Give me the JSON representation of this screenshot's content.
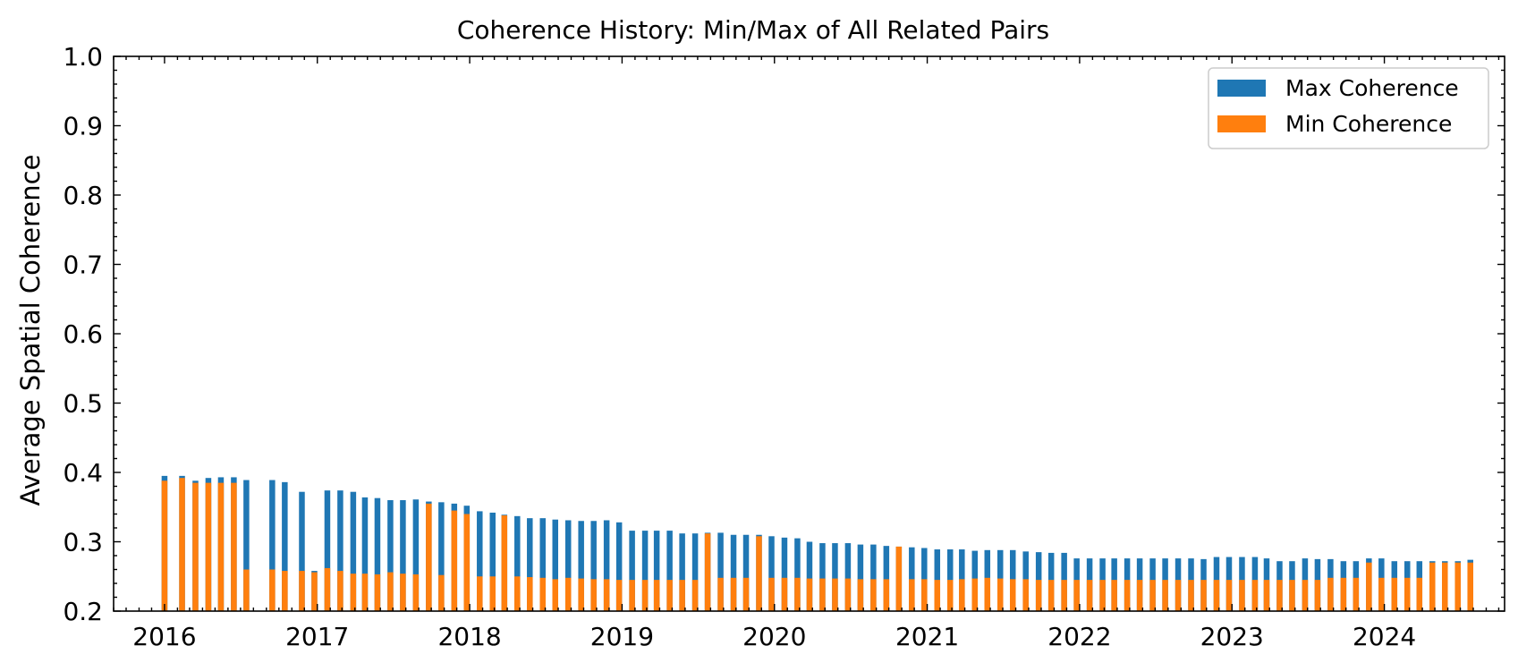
{
  "chart_data": {
    "type": "bar",
    "stacking": "overlaid",
    "title": "Coherence History: Min/Max of All Related Pairs",
    "xlabel": "",
    "ylabel": "Average Spatial Coherence",
    "ylim": [
      0.2,
      1.0
    ],
    "y_ticks": [
      "0.2",
      "0.3",
      "0.4",
      "0.5",
      "0.6",
      "0.7",
      "0.8",
      "0.9",
      "1.0"
    ],
    "xlim": [
      "2015-09-01",
      "2024-10-15"
    ],
    "x_ticks": [
      "2016-01-01",
      "2017-01-01",
      "2018-01-01",
      "2019-01-01",
      "2020-01-01",
      "2021-01-01",
      "2022-01-01",
      "2023-01-01",
      "2024-01-01"
    ],
    "x_tick_labels": [
      "2016",
      "2017",
      "2018",
      "2019",
      "2020",
      "2021",
      "2022",
      "2023",
      "2024"
    ],
    "grid": false,
    "legend": {
      "position": "top-right"
    },
    "colors": {
      "max": "#1f77b4",
      "min": "#ff7f0e"
    },
    "series": [
      {
        "name": "Max Coherence",
        "key": "max"
      },
      {
        "name": "Min Coherence",
        "key": "min"
      }
    ],
    "x": [
      "2016-01-01",
      "2016-02-12",
      "2016-03-15",
      "2016-04-15",
      "2016-05-15",
      "2016-06-15",
      "2016-07-15",
      "2016-09-15",
      "2016-10-15",
      "2016-11-25",
      "2016-12-25",
      "2017-01-25",
      "2017-02-25",
      "2017-03-28",
      "2017-04-25",
      "2017-05-25",
      "2017-06-25",
      "2017-07-25",
      "2017-08-25",
      "2017-09-25",
      "2017-10-25",
      "2017-11-25",
      "2017-12-25",
      "2018-01-25",
      "2018-02-25",
      "2018-03-25",
      "2018-04-25",
      "2018-05-25",
      "2018-06-25",
      "2018-07-25",
      "2018-08-25",
      "2018-09-25",
      "2018-10-25",
      "2018-11-25",
      "2018-12-25",
      "2019-01-25",
      "2019-02-25",
      "2019-03-25",
      "2019-04-25",
      "2019-05-25",
      "2019-06-25",
      "2019-07-25",
      "2019-08-25",
      "2019-09-25",
      "2019-10-25",
      "2019-11-25",
      "2019-12-25",
      "2020-01-25",
      "2020-02-25",
      "2020-03-25",
      "2020-04-25",
      "2020-05-25",
      "2020-06-25",
      "2020-07-25",
      "2020-08-25",
      "2020-09-25",
      "2020-10-25",
      "2020-11-25",
      "2020-12-25",
      "2021-01-25",
      "2021-02-25",
      "2021-03-25",
      "2021-04-25",
      "2021-05-25",
      "2021-06-25",
      "2021-07-25",
      "2021-08-25",
      "2021-09-25",
      "2021-10-25",
      "2021-11-25",
      "2021-12-25",
      "2022-01-25",
      "2022-02-25",
      "2022-03-25",
      "2022-04-25",
      "2022-05-25",
      "2022-06-25",
      "2022-07-25",
      "2022-08-25",
      "2022-09-25",
      "2022-10-25",
      "2022-11-25",
      "2022-12-25",
      "2023-01-25",
      "2023-02-25",
      "2023-03-25",
      "2023-04-25",
      "2023-05-25",
      "2023-06-25",
      "2023-07-25",
      "2023-08-25",
      "2023-09-25",
      "2023-10-25",
      "2023-11-25",
      "2023-12-25",
      "2024-01-25",
      "2024-02-25",
      "2024-03-25",
      "2024-04-25",
      "2024-05-25",
      "2024-06-25",
      "2024-07-25"
    ],
    "max": [
      0.395,
      0.395,
      0.388,
      0.392,
      0.393,
      0.393,
      0.389,
      0.389,
      0.386,
      0.372,
      0.258,
      0.374,
      0.374,
      0.372,
      0.364,
      0.363,
      0.36,
      0.36,
      0.361,
      0.358,
      0.357,
      0.355,
      0.352,
      0.344,
      0.342,
      0.339,
      0.337,
      0.334,
      0.334,
      0.332,
      0.331,
      0.33,
      0.33,
      0.331,
      0.328,
      0.316,
      0.316,
      0.316,
      0.316,
      0.312,
      0.312,
      0.313,
      0.313,
      0.31,
      0.31,
      0.31,
      0.308,
      0.306,
      0.305,
      0.3,
      0.298,
      0.298,
      0.298,
      0.296,
      0.296,
      0.294,
      0.293,
      0.292,
      0.291,
      0.289,
      0.289,
      0.289,
      0.287,
      0.288,
      0.288,
      0.288,
      0.286,
      0.285,
      0.284,
      0.284,
      0.276,
      0.276,
      0.276,
      0.276,
      0.276,
      0.276,
      0.276,
      0.276,
      0.276,
      0.276,
      0.275,
      0.278,
      0.278,
      0.278,
      0.278,
      0.276,
      0.272,
      0.272,
      0.276,
      0.275,
      0.275,
      0.272,
      0.272,
      0.276,
      0.276,
      0.272,
      0.272,
      0.272,
      0.272,
      0.272,
      0.272,
      0.274
    ],
    "min": [
      0.388,
      0.392,
      0.385,
      0.385,
      0.385,
      0.385,
      0.26,
      0.26,
      0.258,
      0.258,
      0.256,
      0.262,
      0.258,
      0.254,
      0.254,
      0.253,
      0.256,
      0.254,
      0.253,
      0.355,
      0.252,
      0.345,
      0.34,
      0.25,
      0.25,
      0.338,
      0.25,
      0.249,
      0.248,
      0.246,
      0.248,
      0.247,
      0.246,
      0.246,
      0.245,
      0.245,
      0.245,
      0.245,
      0.245,
      0.245,
      0.245,
      0.312,
      0.248,
      0.248,
      0.248,
      0.308,
      0.248,
      0.248,
      0.248,
      0.247,
      0.247,
      0.247,
      0.247,
      0.246,
      0.246,
      0.246,
      0.293,
      0.246,
      0.246,
      0.245,
      0.245,
      0.246,
      0.247,
      0.248,
      0.247,
      0.246,
      0.246,
      0.245,
      0.245,
      0.245,
      0.245,
      0.245,
      0.245,
      0.245,
      0.245,
      0.245,
      0.245,
      0.245,
      0.245,
      0.245,
      0.245,
      0.245,
      0.245,
      0.245,
      0.245,
      0.245,
      0.245,
      0.245,
      0.245,
      0.245,
      0.248,
      0.248,
      0.248,
      0.27,
      0.248,
      0.248,
      0.248,
      0.248,
      0.27,
      0.27,
      0.27,
      0.27
    ]
  }
}
